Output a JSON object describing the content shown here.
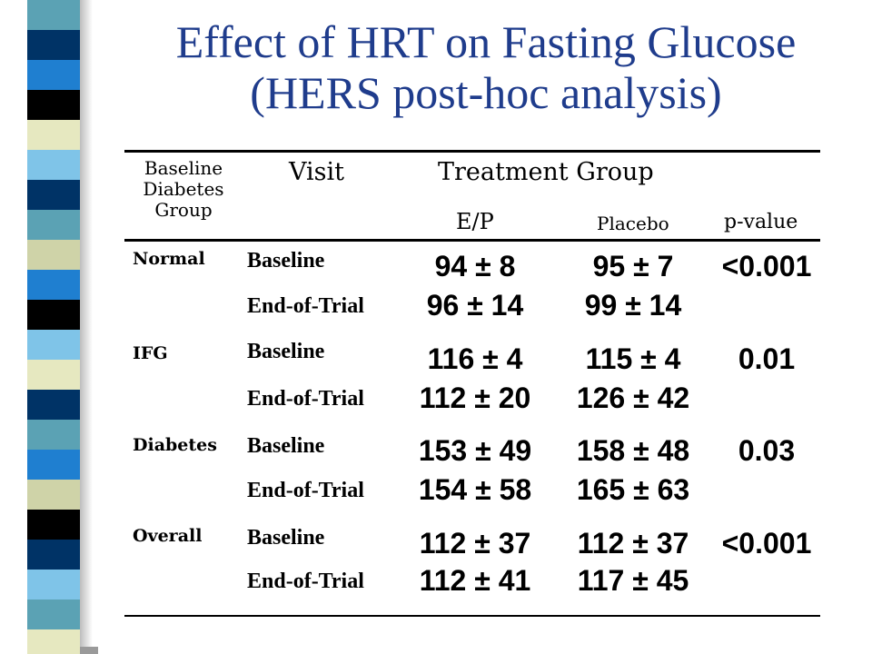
{
  "title": {
    "line1": "Effect of HRT on Fasting Glucose",
    "line2": "(HERS post-hoc analysis)"
  },
  "colors": {
    "title": "#1f3c8c",
    "stripe": [
      "#5ba2b4",
      "#003366",
      "#1f7fd0",
      "#000000",
      "#e6e8c0",
      "#7fc4e8",
      "#cfd3a8"
    ]
  },
  "table": {
    "headers": {
      "baseline_group": [
        "Baseline",
        "Diabetes",
        "Group"
      ],
      "visit": "Visit",
      "treatment_group": "Treatment Group",
      "ep": "E/P",
      "placebo": "Placebo",
      "p_value": "p-value"
    },
    "groups": [
      {
        "name": "Normal",
        "p_value": "<0.001",
        "rows": [
          {
            "visit": "Baseline",
            "ep": "94 ± 8",
            "placebo": "95 ± 7"
          },
          {
            "visit": "End-of-Trial",
            "ep": "96 ± 14",
            "placebo": "99 ± 14"
          }
        ]
      },
      {
        "name": "IFG",
        "p_value": "0.01",
        "rows": [
          {
            "visit": "Baseline",
            "ep": "116 ± 4",
            "placebo": "115 ± 4"
          },
          {
            "visit": "End-of-Trial",
            "ep": "112 ± 20",
            "placebo": "126 ± 42"
          }
        ]
      },
      {
        "name": "Diabetes",
        "p_value": "0.03",
        "rows": [
          {
            "visit": "Baseline",
            "ep": "153 ± 49",
            "placebo": "158 ± 48"
          },
          {
            "visit": "End-of-Trial",
            "ep": "154 ± 58",
            "placebo": "165 ± 63"
          }
        ]
      },
      {
        "name": "Overall",
        "p_value": "<0.001",
        "rows": [
          {
            "visit": "Baseline",
            "ep": "112 ± 37",
            "placebo": "112 ± 37"
          },
          {
            "visit": "End-of-Trial",
            "ep": "112 ± 41",
            "placebo": "117 ± 45"
          }
        ]
      }
    ]
  }
}
